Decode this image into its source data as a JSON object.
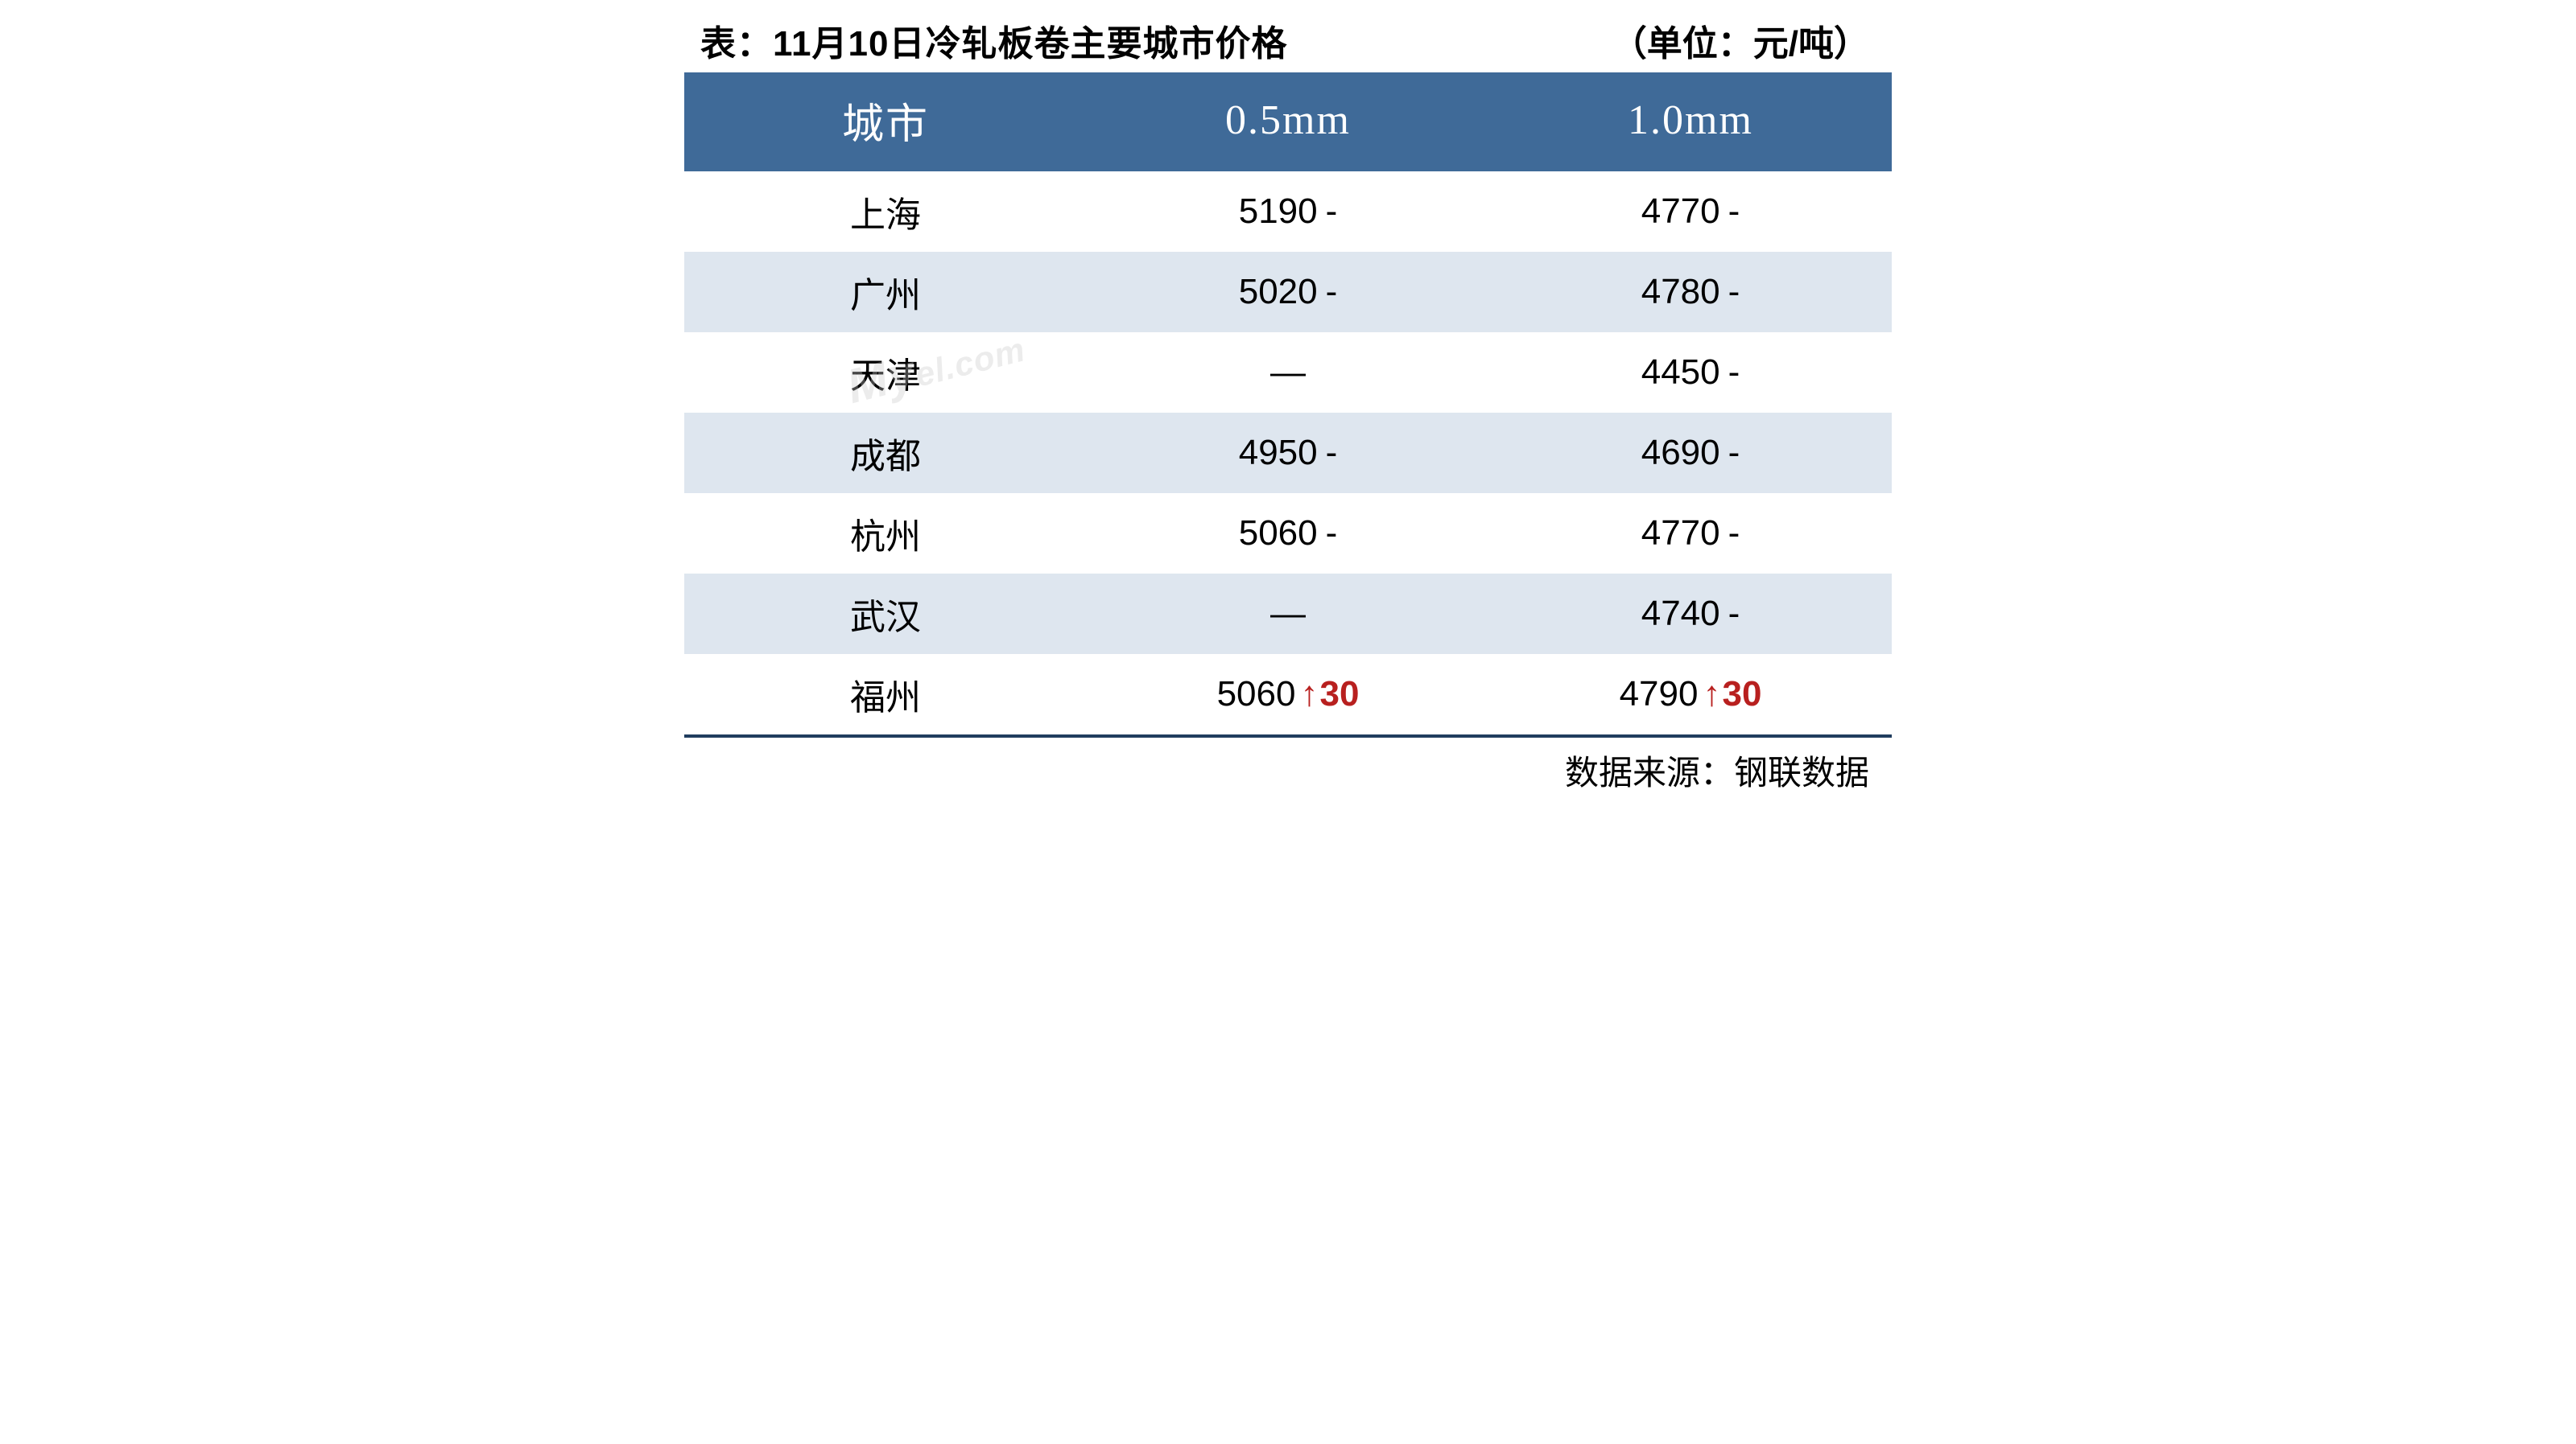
{
  "header": {
    "title_left": "表：11月10日冷轧板卷主要城市价格",
    "title_right": "（单位：元/吨）"
  },
  "table": {
    "type": "table",
    "header_bg": "#3f6a98",
    "header_fg": "#ffffff",
    "row_even_bg": "#dee6ef",
    "row_odd_bg": "#ffffff",
    "text_color": "#000000",
    "up_color": "#b8201f",
    "border_bottom_color": "#203d5e",
    "columns": [
      {
        "key": "city",
        "label": "城市"
      },
      {
        "key": "p05",
        "label": "0.5mm"
      },
      {
        "key": "p10",
        "label": "1.0mm"
      }
    ],
    "rows": [
      {
        "city": "上海",
        "p05": {
          "value": "5190",
          "change": null,
          "dir": "flat"
        },
        "p10": {
          "value": "4770",
          "change": null,
          "dir": "flat"
        }
      },
      {
        "city": "广州",
        "p05": {
          "value": "5020",
          "change": null,
          "dir": "flat"
        },
        "p10": {
          "value": "4780",
          "change": null,
          "dir": "flat"
        }
      },
      {
        "city": "天津",
        "p05": {
          "value": null,
          "change": null,
          "dir": "flat"
        },
        "p10": {
          "value": "4450",
          "change": null,
          "dir": "flat"
        }
      },
      {
        "city": "成都",
        "p05": {
          "value": "4950",
          "change": null,
          "dir": "flat"
        },
        "p10": {
          "value": "4690",
          "change": null,
          "dir": "flat"
        }
      },
      {
        "city": "杭州",
        "p05": {
          "value": "5060",
          "change": null,
          "dir": "flat"
        },
        "p10": {
          "value": "4770",
          "change": null,
          "dir": "flat"
        }
      },
      {
        "city": "武汉",
        "p05": {
          "value": null,
          "change": null,
          "dir": "flat"
        },
        "p10": {
          "value": "4740",
          "change": null,
          "dir": "flat"
        }
      },
      {
        "city": "福州",
        "p05": {
          "value": "5060",
          "change": "30",
          "dir": "up"
        },
        "p10": {
          "value": "4790",
          "change": "30",
          "dir": "up"
        }
      }
    ]
  },
  "footer": {
    "source_label": "数据来源：钢联数据"
  },
  "watermark": {
    "text_main": "My",
    "text_suffix": "el.com"
  },
  "glyphs": {
    "flat_suffix": "-",
    "empty_cell": "—",
    "arrow_up": "↑"
  }
}
